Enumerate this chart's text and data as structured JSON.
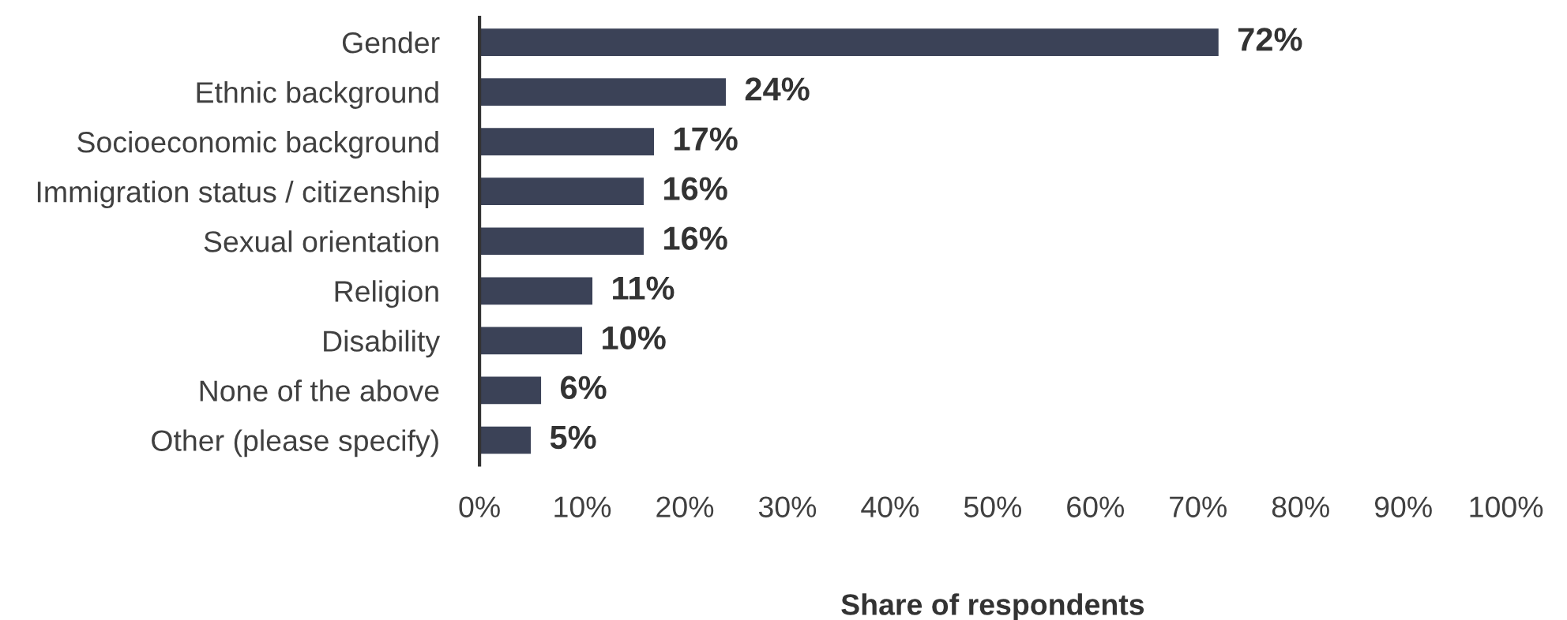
{
  "chart_data": {
    "type": "bar",
    "orientation": "horizontal",
    "xlabel": "Share of respondents",
    "categories": [
      "Gender",
      "Ethnic background",
      "Socioeconomic background",
      "Immigration status / citizenship",
      "Sexual orientation",
      "Religion",
      "Disability",
      "None of the above",
      "Other (please specify)"
    ],
    "values": [
      72,
      24,
      17,
      16,
      16,
      11,
      10,
      6,
      5
    ],
    "value_labels": [
      "72%",
      "24%",
      "17%",
      "16%",
      "16%",
      "11%",
      "10%",
      "6%",
      "5%"
    ],
    "color": "#3b4257",
    "xlim": [
      0,
      100
    ],
    "xticks": [
      {
        "value": 0,
        "label": "0%"
      },
      {
        "value": 10,
        "label": "10%"
      },
      {
        "value": 20,
        "label": "20%"
      },
      {
        "value": 30,
        "label": "30%"
      },
      {
        "value": 40,
        "label": "40%"
      },
      {
        "value": 50,
        "label": "50%"
      },
      {
        "value": 60,
        "label": "60%"
      },
      {
        "value": 70,
        "label": "70%"
      },
      {
        "value": 80,
        "label": "80%"
      },
      {
        "value": 90,
        "label": "90%"
      },
      {
        "value": 100,
        "label": "100%"
      }
    ],
    "grid": false,
    "legend": false
  }
}
